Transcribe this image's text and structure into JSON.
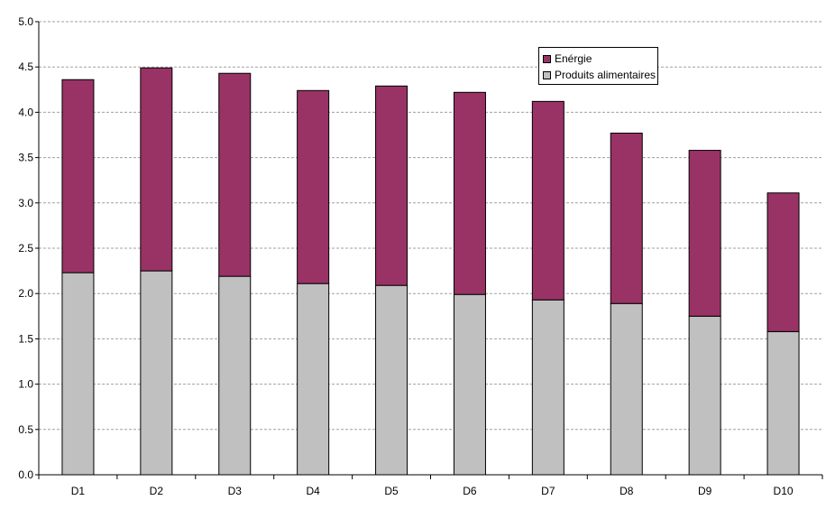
{
  "chart_data": {
    "type": "bar",
    "stacked": true,
    "categories": [
      "D1",
      "D2",
      "D3",
      "D4",
      "D5",
      "D6",
      "D7",
      "D8",
      "D9",
      "D10"
    ],
    "series": [
      {
        "name": "Produits alimentaires",
        "color": "#c0c0c0",
        "values": [
          2.23,
          2.25,
          2.19,
          2.11,
          2.09,
          1.99,
          1.93,
          1.89,
          1.75,
          1.58
        ]
      },
      {
        "name": "Energie",
        "color": "#993366",
        "values": [
          2.13,
          2.24,
          2.24,
          2.13,
          2.2,
          2.23,
          2.19,
          1.88,
          1.83,
          1.53
        ]
      }
    ],
    "legend_labels": [
      "Enérgie",
      "Produits alimentaires"
    ],
    "ylim": [
      0,
      5
    ],
    "yticks": [
      "0.0",
      "0.5",
      "1.0",
      "1.5",
      "2.0",
      "2.5",
      "3.0",
      "3.5",
      "4.0",
      "4.5",
      "5.0"
    ],
    "grid": true,
    "legend_position": "top-right",
    "title": "",
    "xlabel": "",
    "ylabel": ""
  }
}
